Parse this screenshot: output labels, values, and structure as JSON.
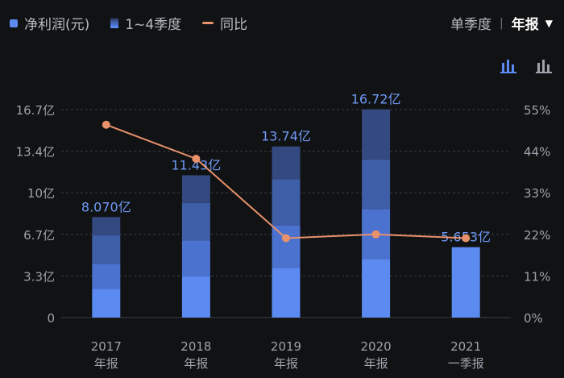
{
  "legend": {
    "net_profit": "净利润(元)",
    "quarters": "1~4季度",
    "yoy": "同比"
  },
  "period": {
    "quarterly": "单季度",
    "separator": "|",
    "annual": "年报",
    "caret": "▼"
  },
  "icons": [
    "stacked-bar-chart-icon",
    "bar-chart-icon"
  ],
  "colors": {
    "background": "#111214",
    "q1": "#5b8af0",
    "q2": "#4c72d0",
    "q3": "#3f5ea8",
    "q4": "#33497f",
    "single": "#5b8af0",
    "line": "#e8916a",
    "label": "#6e9af5",
    "axis_text": "#9ea2aa",
    "grid": "#3a3d44"
  },
  "chart_data": {
    "type": "bar",
    "categories": [
      {
        "year": "2017",
        "period": "年报"
      },
      {
        "year": "2018",
        "period": "年报"
      },
      {
        "year": "2019",
        "period": "年报"
      },
      {
        "year": "2020",
        "period": "年报"
      },
      {
        "year": "2021",
        "period": "一季报"
      }
    ],
    "values": [
      8.07,
      11.43,
      13.74,
      16.72,
      5.653
    ],
    "value_labels": [
      "8.070亿",
      "11.43亿",
      "13.74亿",
      "16.72亿",
      "5.653亿"
    ],
    "quarter_breakdown": [
      [
        2.3,
        2.0,
        2.3,
        1.47
      ],
      [
        3.3,
        2.9,
        3.0,
        2.23
      ],
      [
        4.0,
        3.4,
        3.7,
        2.64
      ],
      [
        4.7,
        4.0,
        4.0,
        4.02
      ],
      [
        5.653
      ]
    ],
    "yoy_percent": [
      51,
      42,
      21,
      22,
      21
    ],
    "y_left": {
      "ticks": [
        "0",
        "3.3亿",
        "6.7亿",
        "10亿",
        "13.4亿",
        "16.7亿"
      ],
      "values": [
        0,
        3.34,
        6.68,
        10.02,
        13.36,
        16.7
      ],
      "max": 16.7
    },
    "y_right": {
      "ticks": [
        "0%",
        "11%",
        "22%",
        "33%",
        "44%",
        "55%"
      ],
      "max": 55
    },
    "unit": "亿"
  }
}
